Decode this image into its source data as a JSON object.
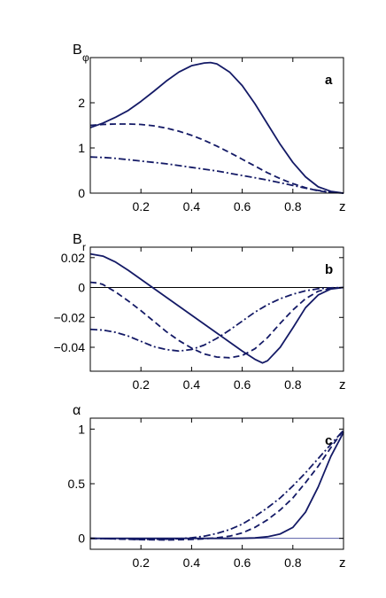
{
  "chart_data": [
    {
      "type": "line",
      "panel_label": "a",
      "ylabel_main": "B",
      "ylabel_sub": "φ",
      "xlabel": "z",
      "xlim": [
        0,
        1
      ],
      "ylim": [
        0,
        3
      ],
      "xticks": [
        0.2,
        0.4,
        0.6,
        0.8
      ],
      "xtick_labels": [
        "0.2",
        "0.4",
        "0.6",
        "0.8"
      ],
      "yticks": [
        0,
        1,
        2
      ],
      "ytick_labels": [
        "0",
        "1",
        "2"
      ],
      "series": [
        {
          "style": "solid",
          "x": [
            0,
            0.05,
            0.1,
            0.15,
            0.2,
            0.25,
            0.3,
            0.35,
            0.4,
            0.45,
            0.475,
            0.5,
            0.55,
            0.6,
            0.65,
            0.7,
            0.75,
            0.8,
            0.85,
            0.9,
            0.95,
            1.0
          ],
          "y": [
            1.45,
            1.55,
            1.68,
            1.83,
            2.03,
            2.25,
            2.48,
            2.68,
            2.82,
            2.88,
            2.89,
            2.86,
            2.68,
            2.38,
            1.98,
            1.53,
            1.08,
            0.68,
            0.36,
            0.14,
            0.04,
            0
          ]
        },
        {
          "style": "dashed",
          "x": [
            0,
            0.05,
            0.1,
            0.15,
            0.2,
            0.25,
            0.3,
            0.35,
            0.4,
            0.45,
            0.5,
            0.55,
            0.6,
            0.65,
            0.7,
            0.75,
            0.8,
            0.85,
            0.9,
            0.95,
            1.0
          ],
          "y": [
            1.5,
            1.52,
            1.53,
            1.53,
            1.52,
            1.49,
            1.44,
            1.37,
            1.28,
            1.17,
            1.04,
            0.9,
            0.75,
            0.6,
            0.45,
            0.32,
            0.21,
            0.12,
            0.05,
            0.015,
            0
          ]
        },
        {
          "style": "dashdot",
          "x": [
            0,
            0.05,
            0.1,
            0.15,
            0.2,
            0.25,
            0.3,
            0.35,
            0.4,
            0.45,
            0.5,
            0.55,
            0.6,
            0.65,
            0.7,
            0.75,
            0.8,
            0.85,
            0.9,
            0.95,
            1.0
          ],
          "y": [
            0.8,
            0.79,
            0.77,
            0.74,
            0.71,
            0.68,
            0.65,
            0.61,
            0.57,
            0.53,
            0.49,
            0.44,
            0.39,
            0.34,
            0.29,
            0.23,
            0.17,
            0.11,
            0.06,
            0.02,
            0
          ]
        }
      ]
    },
    {
      "type": "line",
      "panel_label": "b",
      "ylabel_main": "B",
      "ylabel_sub": "r",
      "xlabel": "z",
      "xlim": [
        0,
        1
      ],
      "ylim": [
        -0.056,
        0.027
      ],
      "zero_line": true,
      "xticks": [
        0.2,
        0.4,
        0.6,
        0.8
      ],
      "xtick_labels": [
        "0.2",
        "0.4",
        "0.6",
        "0.8"
      ],
      "yticks": [
        0.02,
        0,
        -0.02,
        -0.04
      ],
      "ytick_labels": [
        "0.02",
        "0",
        "−0.02",
        "−0.04"
      ],
      "series": [
        {
          "style": "solid",
          "x": [
            0,
            0.05,
            0.1,
            0.15,
            0.2,
            0.25,
            0.3,
            0.35,
            0.4,
            0.45,
            0.5,
            0.55,
            0.6,
            0.65,
            0.68,
            0.7,
            0.75,
            0.8,
            0.85,
            0.9,
            0.95,
            1.0
          ],
          "y": [
            0.0225,
            0.021,
            0.017,
            0.0115,
            0.0055,
            -0.0005,
            -0.0065,
            -0.0125,
            -0.0185,
            -0.0245,
            -0.0305,
            -0.0365,
            -0.0425,
            -0.048,
            -0.0505,
            -0.049,
            -0.04,
            -0.027,
            -0.0135,
            -0.005,
            -0.001,
            0
          ]
        },
        {
          "style": "dashed",
          "x": [
            0,
            0.03,
            0.05,
            0.1,
            0.15,
            0.2,
            0.25,
            0.3,
            0.35,
            0.4,
            0.45,
            0.5,
            0.55,
            0.6,
            0.65,
            0.7,
            0.75,
            0.8,
            0.85,
            0.9,
            0.95,
            1.0
          ],
          "y": [
            0.0035,
            0.003,
            0.002,
            -0.003,
            -0.009,
            -0.0155,
            -0.0225,
            -0.0295,
            -0.0355,
            -0.0405,
            -0.0445,
            -0.0465,
            -0.047,
            -0.0455,
            -0.041,
            -0.0335,
            -0.024,
            -0.015,
            -0.0075,
            -0.0025,
            -0.0005,
            0
          ]
        },
        {
          "style": "dashdot",
          "x": [
            0,
            0.05,
            0.1,
            0.15,
            0.2,
            0.25,
            0.3,
            0.35,
            0.4,
            0.45,
            0.5,
            0.55,
            0.6,
            0.65,
            0.7,
            0.75,
            0.8,
            0.85,
            0.9,
            0.95,
            1.0
          ],
          "y": [
            -0.028,
            -0.0285,
            -0.03,
            -0.0325,
            -0.036,
            -0.0395,
            -0.0415,
            -0.0425,
            -0.0415,
            -0.0385,
            -0.034,
            -0.0285,
            -0.0225,
            -0.0165,
            -0.0115,
            -0.0075,
            -0.0045,
            -0.0022,
            -0.0008,
            -0.0002,
            0
          ]
        }
      ]
    },
    {
      "type": "line",
      "panel_label": "c",
      "ylabel_main": "α",
      "ylabel_sub": "",
      "xlabel": "z",
      "xlim": [
        0,
        1
      ],
      "ylim": [
        -0.1,
        1.1
      ],
      "zero_line": true,
      "xticks": [
        0.2,
        0.4,
        0.6,
        0.8
      ],
      "xtick_labels": [
        "0.2",
        "0.4",
        "0.6",
        "0.8"
      ],
      "yticks": [
        0,
        0.5,
        1
      ],
      "ytick_labels": [
        "0",
        "0.5",
        "1"
      ],
      "series": [
        {
          "style": "solid",
          "x": [
            0,
            0.1,
            0.2,
            0.3,
            0.4,
            0.5,
            0.55,
            0.6,
            0.65,
            0.7,
            0.75,
            0.8,
            0.85,
            0.9,
            0.95,
            1.0
          ],
          "y": [
            0,
            0,
            0,
            0,
            0,
            0,
            0,
            0.001,
            0.004,
            0.015,
            0.04,
            0.1,
            0.24,
            0.47,
            0.75,
            0.97
          ]
        },
        {
          "style": "dashed",
          "x": [
            0,
            0.1,
            0.2,
            0.3,
            0.4,
            0.45,
            0.5,
            0.55,
            0.6,
            0.65,
            0.7,
            0.75,
            0.8,
            0.85,
            0.9,
            0.95,
            1.0
          ],
          "y": [
            0,
            -0.005,
            -0.012,
            -0.015,
            -0.01,
            -0.004,
            0.005,
            0.02,
            0.05,
            0.1,
            0.17,
            0.26,
            0.37,
            0.51,
            0.66,
            0.83,
            0.99
          ]
        },
        {
          "style": "dashdot",
          "x": [
            0,
            0.1,
            0.2,
            0.3,
            0.35,
            0.4,
            0.45,
            0.5,
            0.55,
            0.6,
            0.65,
            0.7,
            0.75,
            0.8,
            0.85,
            0.9,
            0.95,
            1.0
          ],
          "y": [
            0,
            -0.005,
            -0.01,
            -0.008,
            -0.003,
            0.005,
            0.02,
            0.045,
            0.08,
            0.13,
            0.2,
            0.28,
            0.37,
            0.48,
            0.6,
            0.73,
            0.86,
            0.99
          ]
        }
      ]
    }
  ],
  "colors": {
    "curve": "#141a66",
    "zero_line_b": "#000000",
    "zero_line_c": "#5a5fa8"
  }
}
